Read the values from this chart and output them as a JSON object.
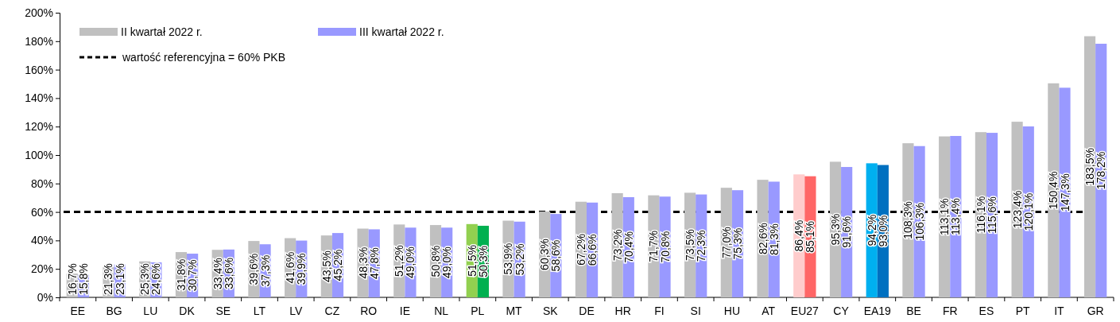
{
  "chart_data": {
    "type": "bar",
    "categories": [
      "EE",
      "BG",
      "LU",
      "DK",
      "SE",
      "LT",
      "LV",
      "CZ",
      "RO",
      "IE",
      "NL",
      "PL",
      "MT",
      "SK",
      "DE",
      "HR",
      "FI",
      "SI",
      "HU",
      "AT",
      "EU27",
      "CY",
      "EA19",
      "BE",
      "FR",
      "ES",
      "PT",
      "IT",
      "GR"
    ],
    "series": [
      {
        "name": "II kwartał 2022 r.",
        "color": "#c0c0c0",
        "colors": [
          "#c0c0c0",
          "#c0c0c0",
          "#c0c0c0",
          "#c0c0c0",
          "#c0c0c0",
          "#c0c0c0",
          "#c0c0c0",
          "#c0c0c0",
          "#c0c0c0",
          "#c0c0c0",
          "#c0c0c0",
          "#92d050",
          "#c0c0c0",
          "#c0c0c0",
          "#c0c0c0",
          "#c0c0c0",
          "#c0c0c0",
          "#c0c0c0",
          "#c0c0c0",
          "#c0c0c0",
          "#ffcccc",
          "#c0c0c0",
          "#00b0f0",
          "#c0c0c0",
          "#c0c0c0",
          "#c0c0c0",
          "#c0c0c0",
          "#c0c0c0",
          "#c0c0c0"
        ],
        "values": [
          16.7,
          21.3,
          25.3,
          31.8,
          33.4,
          39.6,
          41.6,
          43.5,
          48.3,
          51.2,
          50.8,
          51.5,
          53.9,
          60.3,
          67.2,
          73.2,
          71.7,
          73.5,
          77.0,
          82.6,
          86.4,
          95.3,
          94.2,
          108.3,
          113.1,
          116.1,
          123.4,
          150.4,
          183.5
        ],
        "value_labels": [
          "16,7%",
          "21,3%",
          "25,3%",
          "31,8%",
          "33,4%",
          "39,6%",
          "41,6%",
          "43,5%",
          "48,3%",
          "51,2%",
          "50,8%",
          "51,5%",
          "53,9%",
          "60,3%",
          "67,2%",
          "73,2%",
          "71,7%",
          "73,5%",
          "77,0%",
          "82,6%",
          "86,4%",
          "95,3%",
          "94,2%",
          "108,3%",
          "113,1%",
          "116,1%",
          "123,4%",
          "150,4%",
          "183,5%"
        ]
      },
      {
        "name": "III kwartał 2022 r.",
        "color": "#9999ff",
        "colors": [
          "#9999ff",
          "#9999ff",
          "#9999ff",
          "#9999ff",
          "#9999ff",
          "#9999ff",
          "#9999ff",
          "#9999ff",
          "#9999ff",
          "#9999ff",
          "#9999ff",
          "#00b050",
          "#9999ff",
          "#9999ff",
          "#9999ff",
          "#9999ff",
          "#9999ff",
          "#9999ff",
          "#9999ff",
          "#9999ff",
          "#ff6666",
          "#9999ff",
          "#0070c0",
          "#9999ff",
          "#9999ff",
          "#9999ff",
          "#9999ff",
          "#9999ff",
          "#9999ff"
        ],
        "values": [
          15.8,
          23.1,
          24.6,
          30.7,
          33.6,
          37.3,
          39.9,
          45.2,
          47.8,
          49.0,
          49.0,
          50.3,
          53.2,
          58.6,
          66.6,
          70.4,
          70.8,
          72.3,
          75.3,
          81.3,
          85.1,
          91.6,
          93.0,
          106.3,
          113.4,
          115.6,
          120.1,
          147.3,
          178.2
        ],
        "value_labels": [
          "15,8%",
          "23,1%",
          "24,6%",
          "30,7%",
          "33,6%",
          "37,3%",
          "39,9%",
          "45,2%",
          "47,8%",
          "49,0%",
          "49,0%",
          "50,3%",
          "53,2%",
          "58,6%",
          "66,6%",
          "70,4%",
          "70,8%",
          "72,3%",
          "75,3%",
          "81,3%",
          "85,1%",
          "91,6%",
          "93,0%",
          "106,3%",
          "113,4%",
          "115,6%",
          "120,1%",
          "147,3%",
          "178,2%"
        ]
      }
    ],
    "ylim": [
      0,
      200
    ],
    "yticks": [
      {
        "value": 0,
        "label": "0%"
      },
      {
        "value": 20,
        "label": "20%"
      },
      {
        "value": 40,
        "label": "40%"
      },
      {
        "value": 60,
        "label": "60%"
      },
      {
        "value": 80,
        "label": "80%"
      },
      {
        "value": 100,
        "label": "100%"
      },
      {
        "value": 120,
        "label": "120%"
      },
      {
        "value": 140,
        "label": "140%"
      },
      {
        "value": 160,
        "label": "160%"
      },
      {
        "value": 180,
        "label": "180%"
      },
      {
        "value": 200,
        "label": "200%"
      }
    ],
    "ref_lines": [
      {
        "axis": "y",
        "value": 60,
        "label": "wartość referencyjna = 60% PKB",
        "color": "#000000",
        "line_style": "dashed"
      }
    ],
    "grid": false,
    "legend": "top left"
  }
}
